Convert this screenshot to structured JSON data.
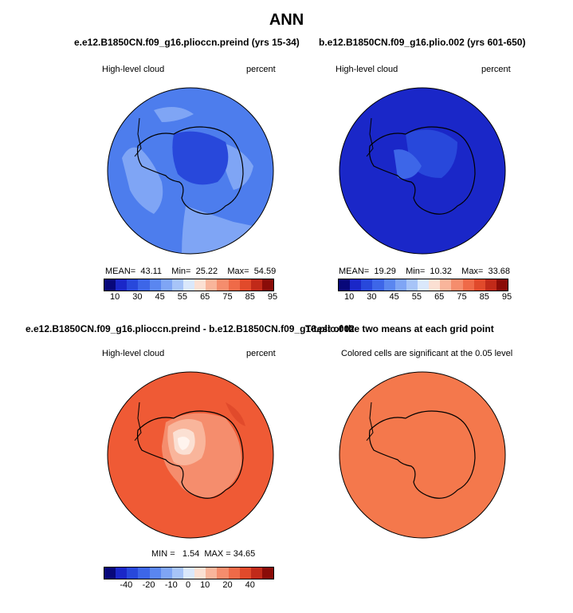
{
  "title": "ANN",
  "panels": [
    {
      "title": "e.e12.B1850CN.f09_g16.plioccn.preind (yrs 15-34)",
      "left_label": "High-level cloud",
      "right_label": "percent",
      "stats": {
        "mean_label": "MEAN=",
        "mean": "43.11",
        "min_label": "Min=",
        "min": "25.22",
        "max_label": "Max=",
        "max": "54.59"
      }
    },
    {
      "title": "b.e12.B1850CN.f09_g16.plio.002 (yrs 601-650)",
      "left_label": "High-level cloud",
      "right_label": "percent",
      "stats": {
        "mean_label": "MEAN=",
        "mean": "19.29",
        "min_label": "Min=",
        "min": "10.32",
        "max_label": "Max=",
        "max": "33.68"
      }
    },
    {
      "title": "e.e12.B1850CN.f09_g16.plioccn.preind - b.e12.B1850CN.f09_g16.plio.002",
      "left_label": "High-level cloud",
      "right_label": "percent",
      "stats": {
        "min_label": "MIN =",
        "min": "1.54",
        "max_label": "MAX =",
        "max": "34.65"
      }
    },
    {
      "title": "T-test of the two means at each grid point",
      "left_label": "Colored cells are significant at the 0.05 level"
    }
  ],
  "colorbar_abs": {
    "colors": [
      "#08087a",
      "#1a27c8",
      "#2848db",
      "#3d66e8",
      "#5a86f0",
      "#7fa5f5",
      "#a7c4f8",
      "#dae8fb",
      "#fbe0d3",
      "#f9b59b",
      "#f58d6d",
      "#ef6a48",
      "#e14a2b",
      "#c12a19",
      "#8a0c08"
    ],
    "ticks": [
      "10",
      "30",
      "45",
      "55",
      "65",
      "75",
      "85",
      "95"
    ]
  },
  "colorbar_diff": {
    "colors": [
      "#08087a",
      "#1a27c8",
      "#2848db",
      "#3d66e8",
      "#5a86f0",
      "#7fa5f5",
      "#a7c4f8",
      "#dae8fb",
      "#fbe0d3",
      "#f9b59b",
      "#f58d6d",
      "#ef6a48",
      "#e14a2b",
      "#c12a19",
      "#8a0c08"
    ],
    "ticks": [
      "-40",
      "-20",
      "-10",
      "0",
      "10",
      "20",
      "40"
    ]
  },
  "map_colors": {
    "panel1_base": "#4d7ded",
    "panel1_light": "#7fa5f5",
    "panel1_mid": "#3d66e8",
    "panel1_dark": "#2848db",
    "panel2_base": "#1a27c8",
    "panel2_light": "#3d66e8",
    "panel2_mid": "#2848db",
    "panel3_base": "#ef5a35",
    "panel3_l1": "#f58d6d",
    "panel3_l2": "#f9b59b",
    "panel3_l3": "#fbe0d3",
    "panel3_l4": "#fff4ee",
    "panel3_dark": "#e14a2b",
    "panel4_base": "#f4784c"
  }
}
